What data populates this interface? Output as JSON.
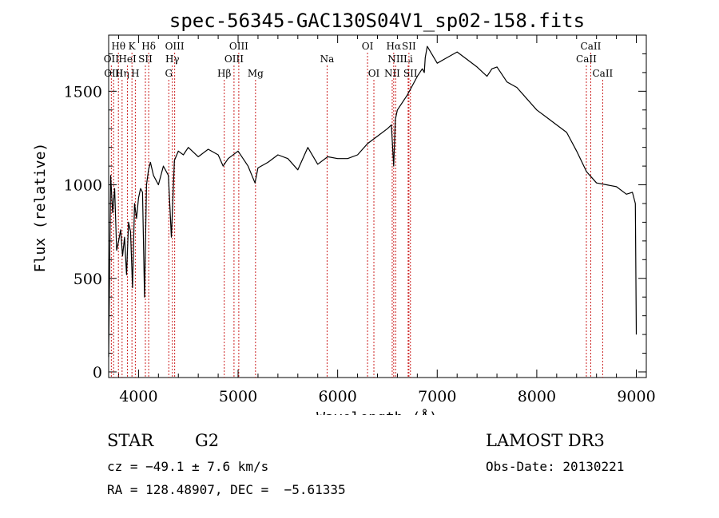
{
  "chart_data": {
    "type": "line",
    "title": "spec-56345-GAC130S04V1_sp02-158.fits",
    "xlabel": "Wavelength (Å)",
    "ylabel": "Flux (relative)",
    "xlim": [
      3700,
      9100
    ],
    "ylim": [
      -30,
      1800
    ],
    "xticks": [
      4000,
      5000,
      6000,
      7000,
      8000,
      9000
    ],
    "yticks": [
      0,
      500,
      1000,
      1500
    ],
    "series": [
      {
        "name": "spectrum",
        "x": [
          3700,
          3720,
          3740,
          3760,
          3780,
          3800,
          3820,
          3840,
          3860,
          3880,
          3900,
          3920,
          3940,
          3960,
          3980,
          4000,
          4020,
          4040,
          4060,
          4080,
          4100,
          4120,
          4150,
          4200,
          4250,
          4300,
          4330,
          4360,
          4400,
          4450,
          4500,
          4600,
          4700,
          4800,
          4850,
          4900,
          5000,
          5100,
          5170,
          5200,
          5300,
          5400,
          5500,
          5600,
          5700,
          5800,
          5900,
          6000,
          6100,
          6200,
          6300,
          6400,
          6500,
          6540,
          6563,
          6580,
          6600,
          6700,
          6800,
          6850,
          6870,
          6880,
          6900,
          7000,
          7100,
          7200,
          7300,
          7400,
          7500,
          7550,
          7600,
          7650,
          7700,
          7800,
          7900,
          8000,
          8100,
          8200,
          8300,
          8400,
          8500,
          8550,
          8600,
          8700,
          8800,
          8900,
          8960,
          8990,
          9000
        ],
        "y": [
          80,
          1050,
          850,
          980,
          650,
          700,
          760,
          620,
          720,
          520,
          800,
          750,
          450,
          900,
          820,
          930,
          980,
          960,
          400,
          1000,
          1080,
          1120,
          1050,
          1000,
          1100,
          1050,
          720,
          1130,
          1180,
          1160,
          1200,
          1150,
          1190,
          1160,
          1100,
          1140,
          1180,
          1100,
          1010,
          1090,
          1120,
          1160,
          1140,
          1080,
          1200,
          1110,
          1150,
          1140,
          1140,
          1160,
          1220,
          1260,
          1300,
          1320,
          1100,
          1350,
          1400,
          1480,
          1580,
          1620,
          1600,
          1680,
          1740,
          1650,
          1680,
          1710,
          1670,
          1630,
          1580,
          1620,
          1630,
          1590,
          1550,
          1520,
          1460,
          1400,
          1360,
          1320,
          1280,
          1180,
          1070,
          1040,
          1010,
          1000,
          990,
          950,
          960,
          900,
          200
        ]
      }
    ],
    "spectral_lines": [
      {
        "label": "Hθ",
        "wavelength": 3798,
        "row": 1
      },
      {
        "label": "OII",
        "wavelength": 3727,
        "row": 2
      },
      {
        "label": "OIII",
        "wavelength": 3750,
        "row": 3
      },
      {
        "label": "Hη",
        "wavelength": 3835,
        "row": 3
      },
      {
        "label": "K",
        "wavelength": 3934,
        "row": 1
      },
      {
        "label": "HeI",
        "wavelength": 3889,
        "row": 2
      },
      {
        "label": "H",
        "wavelength": 3968,
        "row": 3
      },
      {
        "label": "SII",
        "wavelength": 4069,
        "row": 2
      },
      {
        "label": "Hδ",
        "wavelength": 4102,
        "row": 1
      },
      {
        "label": "OIII",
        "wavelength": 4363,
        "row": 1
      },
      {
        "label": "Hγ",
        "wavelength": 4340,
        "row": 2
      },
      {
        "label": "G",
        "wavelength": 4304,
        "row": 3
      },
      {
        "label": "Hβ",
        "wavelength": 4861,
        "row": 3
      },
      {
        "label": "OIII",
        "wavelength": 5007,
        "row": 1
      },
      {
        "label": "OIII",
        "wavelength": 4959,
        "row": 2
      },
      {
        "label": "Mg",
        "wavelength": 5175,
        "row": 3
      },
      {
        "label": "Na",
        "wavelength": 5894,
        "row": 2
      },
      {
        "label": "OI",
        "wavelength": 6300,
        "row": 1
      },
      {
        "label": "OI",
        "wavelength": 6364,
        "row": 3
      },
      {
        "label": "Hα",
        "wavelength": 6563,
        "row": 1
      },
      {
        "label": "SII",
        "wavelength": 6716,
        "row": 1
      },
      {
        "label": "NII",
        "wavelength": 6583,
        "row": 2
      },
      {
        "label": "Li",
        "wavelength": 6708,
        "row": 2
      },
      {
        "label": "NII",
        "wavelength": 6548,
        "row": 3
      },
      {
        "label": "SII",
        "wavelength": 6731,
        "row": 3
      },
      {
        "label": "CaII",
        "wavelength": 8542,
        "row": 1
      },
      {
        "label": "CaII",
        "wavelength": 8498,
        "row": 2
      },
      {
        "label": "CaII",
        "wavelength": 8662,
        "row": 3
      }
    ]
  },
  "info": {
    "object_class": "STAR",
    "subclass": "G2",
    "survey": "LAMOST DR3",
    "cz": "cz = −49.1 ± 7.6 km/s",
    "coords": "RA = 128.48907, DEC =  −5.61335",
    "obs_date": "Obs-Date: 20130221"
  }
}
